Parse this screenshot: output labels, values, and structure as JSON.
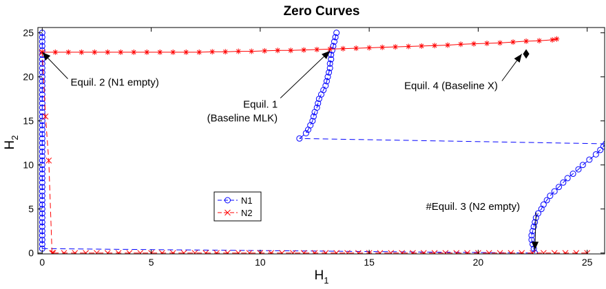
{
  "chart_data": {
    "type": "scatter",
    "title": "Zero Curves",
    "xlabel": "H",
    "xlabel_sub": "1",
    "ylabel": "H",
    "ylabel_sub": "2",
    "xlim": [
      -0.2,
      25.8
    ],
    "ylim": [
      -0.1,
      25.6
    ],
    "xticks": [
      0,
      5,
      10,
      15,
      20,
      25
    ],
    "yticks": [
      0,
      5,
      10,
      15,
      20,
      25
    ],
    "xtick_labels": [
      "0",
      "5",
      "10",
      "15",
      "20",
      "25"
    ],
    "ytick_labels": [
      "0",
      "5",
      "10",
      "15",
      "20",
      "25"
    ],
    "grid": false,
    "legend_position": "lower-left (inside, near center-left)",
    "legend": [
      {
        "label": "N1",
        "color": "#0000ff",
        "marker": "o",
        "line": "dashed"
      },
      {
        "label": "N2",
        "color": "#ff0000",
        "marker": "x",
        "line": "dashed"
      }
    ],
    "series": [
      {
        "name": "N1",
        "color": "#0000ff",
        "marker": "circle",
        "line": "dashed",
        "segments": [
          [
            [
              0,
              25.0
            ],
            [
              0,
              24.5
            ],
            [
              0,
              24.0
            ],
            [
              0,
              23.5
            ],
            [
              0,
              23.0
            ],
            [
              0,
              22.5
            ],
            [
              0,
              22.0
            ],
            [
              0,
              21.5
            ],
            [
              0,
              21.0
            ],
            [
              0,
              20.5
            ],
            [
              0,
              20.0
            ],
            [
              0,
              19.5
            ],
            [
              0,
              19.0
            ],
            [
              0,
              18.5
            ],
            [
              0,
              18.0
            ],
            [
              0,
              17.5
            ],
            [
              0,
              17.0
            ],
            [
              0,
              16.5
            ],
            [
              0,
              16.0
            ],
            [
              0,
              15.5
            ],
            [
              0,
              15.0
            ],
            [
              0,
              14.5
            ],
            [
              0,
              14.0
            ],
            [
              0,
              13.5
            ],
            [
              0,
              13.0
            ],
            [
              0,
              12.5
            ],
            [
              0,
              12.0
            ],
            [
              0,
              11.5
            ],
            [
              0,
              11.0
            ],
            [
              0,
              10.5
            ],
            [
              0,
              10.0
            ],
            [
              0,
              9.5
            ],
            [
              0,
              9.0
            ],
            [
              0,
              8.5
            ],
            [
              0,
              8.0
            ],
            [
              0,
              7.5
            ],
            [
              0,
              7.0
            ],
            [
              0,
              6.5
            ],
            [
              0,
              6.0
            ],
            [
              0,
              5.5
            ],
            [
              0,
              5.0
            ],
            [
              0,
              4.5
            ],
            [
              0,
              4.0
            ],
            [
              0,
              3.5
            ],
            [
              0,
              3.0
            ],
            [
              0,
              2.5
            ],
            [
              0,
              2.0
            ],
            [
              0,
              1.5
            ],
            [
              0,
              1.0
            ],
            [
              0,
              0.5
            ]
          ],
          [
            [
              0,
              0.5
            ],
            [
              22.6,
              0.0
            ]
          ],
          [
            [
              22.6,
              0.0
            ],
            [
              22.55,
              0.5
            ],
            [
              22.5,
              1.0
            ],
            [
              22.45,
              1.5
            ],
            [
              22.45,
              2.0
            ],
            [
              22.5,
              2.5
            ],
            [
              22.55,
              3.0
            ],
            [
              22.6,
              3.5
            ],
            [
              22.65,
              4.0
            ],
            [
              22.75,
              4.5
            ],
            [
              22.9,
              5.0
            ],
            [
              23.0,
              5.5
            ],
            [
              23.15,
              6.0
            ],
            [
              23.3,
              6.5
            ],
            [
              23.5,
              7.0
            ],
            [
              23.7,
              7.5
            ],
            [
              23.9,
              8.0
            ],
            [
              24.1,
              8.5
            ],
            [
              24.35,
              9.0
            ],
            [
              24.6,
              9.5
            ],
            [
              24.8,
              10.0
            ],
            [
              25.1,
              10.6
            ],
            [
              25.4,
              11.2
            ],
            [
              25.6,
              11.7
            ],
            [
              25.75,
              12.1
            ],
            [
              25.85,
              12.4
            ]
          ],
          [
            [
              25.85,
              12.4
            ],
            [
              11.8,
              13.0
            ]
          ],
          [
            [
              11.8,
              13.0
            ],
            [
              12.1,
              13.6
            ],
            [
              12.2,
              14.0
            ],
            [
              12.3,
              14.5
            ],
            [
              12.4,
              15.0
            ],
            [
              12.45,
              15.5
            ],
            [
              12.5,
              16.0
            ],
            [
              12.6,
              16.5
            ],
            [
              12.65,
              17.0
            ],
            [
              12.7,
              17.5
            ],
            [
              12.8,
              18.0
            ],
            [
              12.9,
              18.5
            ],
            [
              13.0,
              19.0
            ],
            [
              13.05,
              19.5
            ],
            [
              13.1,
              20.0
            ],
            [
              13.15,
              20.5
            ],
            [
              13.2,
              21.0
            ],
            [
              13.2,
              21.5
            ],
            [
              13.25,
              22.0
            ],
            [
              13.25,
              22.5
            ],
            [
              13.3,
              23.0
            ],
            [
              13.35,
              23.5
            ],
            [
              13.4,
              24.0
            ],
            [
              13.45,
              24.5
            ],
            [
              13.5,
              25.0
            ]
          ]
        ]
      },
      {
        "name": "N2",
        "color": "#ff0000",
        "marker": "x",
        "line": "dashed",
        "segments": [
          [
            [
              0.45,
              0.0
            ],
            [
              0.3,
              10.5
            ],
            [
              0.15,
              15.5
            ],
            [
              0.0,
              22.8
            ]
          ],
          [
            [
              0.5,
              0.0
            ],
            [
              1.0,
              0.0
            ],
            [
              1.5,
              0.0
            ],
            [
              2.0,
              0.0
            ],
            [
              2.5,
              0.0
            ],
            [
              3.0,
              0.0
            ],
            [
              3.5,
              0.0
            ],
            [
              4.0,
              0.0
            ],
            [
              4.5,
              0.0
            ],
            [
              5.0,
              0.0
            ],
            [
              5.5,
              0.0
            ],
            [
              6.0,
              0.0
            ],
            [
              6.5,
              0.0
            ],
            [
              7.0,
              0.0
            ],
            [
              7.5,
              0.0
            ],
            [
              8.0,
              0.0
            ],
            [
              8.5,
              0.0
            ],
            [
              9.0,
              0.0
            ],
            [
              9.5,
              0.0
            ],
            [
              10.0,
              0.0
            ],
            [
              10.5,
              0.0
            ],
            [
              11.0,
              0.0
            ],
            [
              11.5,
              0.0
            ],
            [
              12.0,
              0.0
            ],
            [
              12.5,
              0.0
            ],
            [
              13.0,
              0.0
            ],
            [
              13.5,
              0.0
            ],
            [
              14.0,
              0.0
            ],
            [
              14.5,
              0.0
            ],
            [
              15.0,
              0.0
            ],
            [
              15.5,
              0.0
            ],
            [
              16.0,
              0.0
            ],
            [
              16.5,
              0.0
            ],
            [
              17.0,
              0.0
            ],
            [
              17.5,
              0.0
            ],
            [
              18.0,
              0.0
            ],
            [
              18.5,
              0.0
            ],
            [
              19.0,
              0.0
            ],
            [
              19.5,
              0.0
            ],
            [
              20.0,
              0.0
            ],
            [
              20.5,
              0.0
            ],
            [
              21.0,
              0.0
            ],
            [
              21.5,
              0.0
            ],
            [
              22.0,
              0.0
            ],
            [
              22.5,
              0.0
            ],
            [
              23.0,
              0.0
            ],
            [
              23.5,
              0.0
            ],
            [
              24.0,
              0.0
            ],
            [
              24.5,
              0.0
            ],
            [
              25.0,
              0.0
            ]
          ]
        ]
      },
      {
        "name": "",
        "color": "#ff0000",
        "marker": "asterisk",
        "line": "solid",
        "segments": [
          [
            [
              0.0,
              22.8
            ],
            [
              0.6,
              22.8
            ],
            [
              1.2,
              22.8
            ],
            [
              1.8,
              22.8
            ],
            [
              2.4,
              22.8
            ],
            [
              3.0,
              22.8
            ],
            [
              3.6,
              22.8
            ],
            [
              4.2,
              22.8
            ],
            [
              4.8,
              22.8
            ],
            [
              5.4,
              22.8
            ],
            [
              6.0,
              22.8
            ],
            [
              6.6,
              22.8
            ],
            [
              7.2,
              22.8
            ],
            [
              7.8,
              22.85
            ],
            [
              8.4,
              22.85
            ],
            [
              9.0,
              22.9
            ],
            [
              9.6,
              22.9
            ],
            [
              10.2,
              22.95
            ],
            [
              10.8,
              23.0
            ],
            [
              11.4,
              23.0
            ],
            [
              12.0,
              23.05
            ],
            [
              12.6,
              23.1
            ],
            [
              13.2,
              23.15
            ],
            [
              13.8,
              23.2
            ],
            [
              14.4,
              23.25
            ],
            [
              15.0,
              23.3
            ],
            [
              15.6,
              23.35
            ],
            [
              16.2,
              23.4
            ],
            [
              16.8,
              23.45
            ],
            [
              17.4,
              23.5
            ],
            [
              18.0,
              23.55
            ],
            [
              18.6,
              23.6
            ],
            [
              19.2,
              23.7
            ],
            [
              19.8,
              23.75
            ],
            [
              20.4,
              23.8
            ],
            [
              21.0,
              23.85
            ],
            [
              21.6,
              23.95
            ],
            [
              22.2,
              24.05
            ],
            [
              22.8,
              24.1
            ],
            [
              23.4,
              24.2
            ],
            [
              23.6,
              24.3
            ]
          ]
        ]
      },
      {
        "name": "",
        "color": "#000000",
        "marker": "diamond",
        "line": "none",
        "segments": [
          [
            [
              22.2,
              22.6
            ]
          ]
        ]
      }
    ],
    "annotations": [
      {
        "text": "Equil. 2 (N1 empty)",
        "lines": [
          "Equil. 2 (N1 empty)"
        ],
        "point": [
          0.0,
          22.8
        ],
        "text_at": [
          1.3,
          19.0
        ],
        "anchor": "start"
      },
      {
        "text": "Equil. 1 (Baseline MLK)",
        "lines": [
          "Equil. 1",
          "(Baseline MLK)"
        ],
        "point": [
          13.2,
          22.95
        ],
        "text_at": [
          10.8,
          16.5
        ],
        "anchor": "end"
      },
      {
        "text": "Equil. 4 (Baseline X)",
        "lines": [
          "Equil. 4 (Baseline X)"
        ],
        "point": [
          22.0,
          22.6
        ],
        "text_at": [
          20.9,
          18.6
        ],
        "anchor": "end"
      },
      {
        "text": "#Equil. 3 (N2 empty)",
        "lines": [
          "#Equil. 3 (N2 empty)"
        ],
        "point": [
          22.6,
          0.35
        ],
        "text_at": [
          17.6,
          4.9
        ],
        "anchor": "start"
      }
    ]
  }
}
